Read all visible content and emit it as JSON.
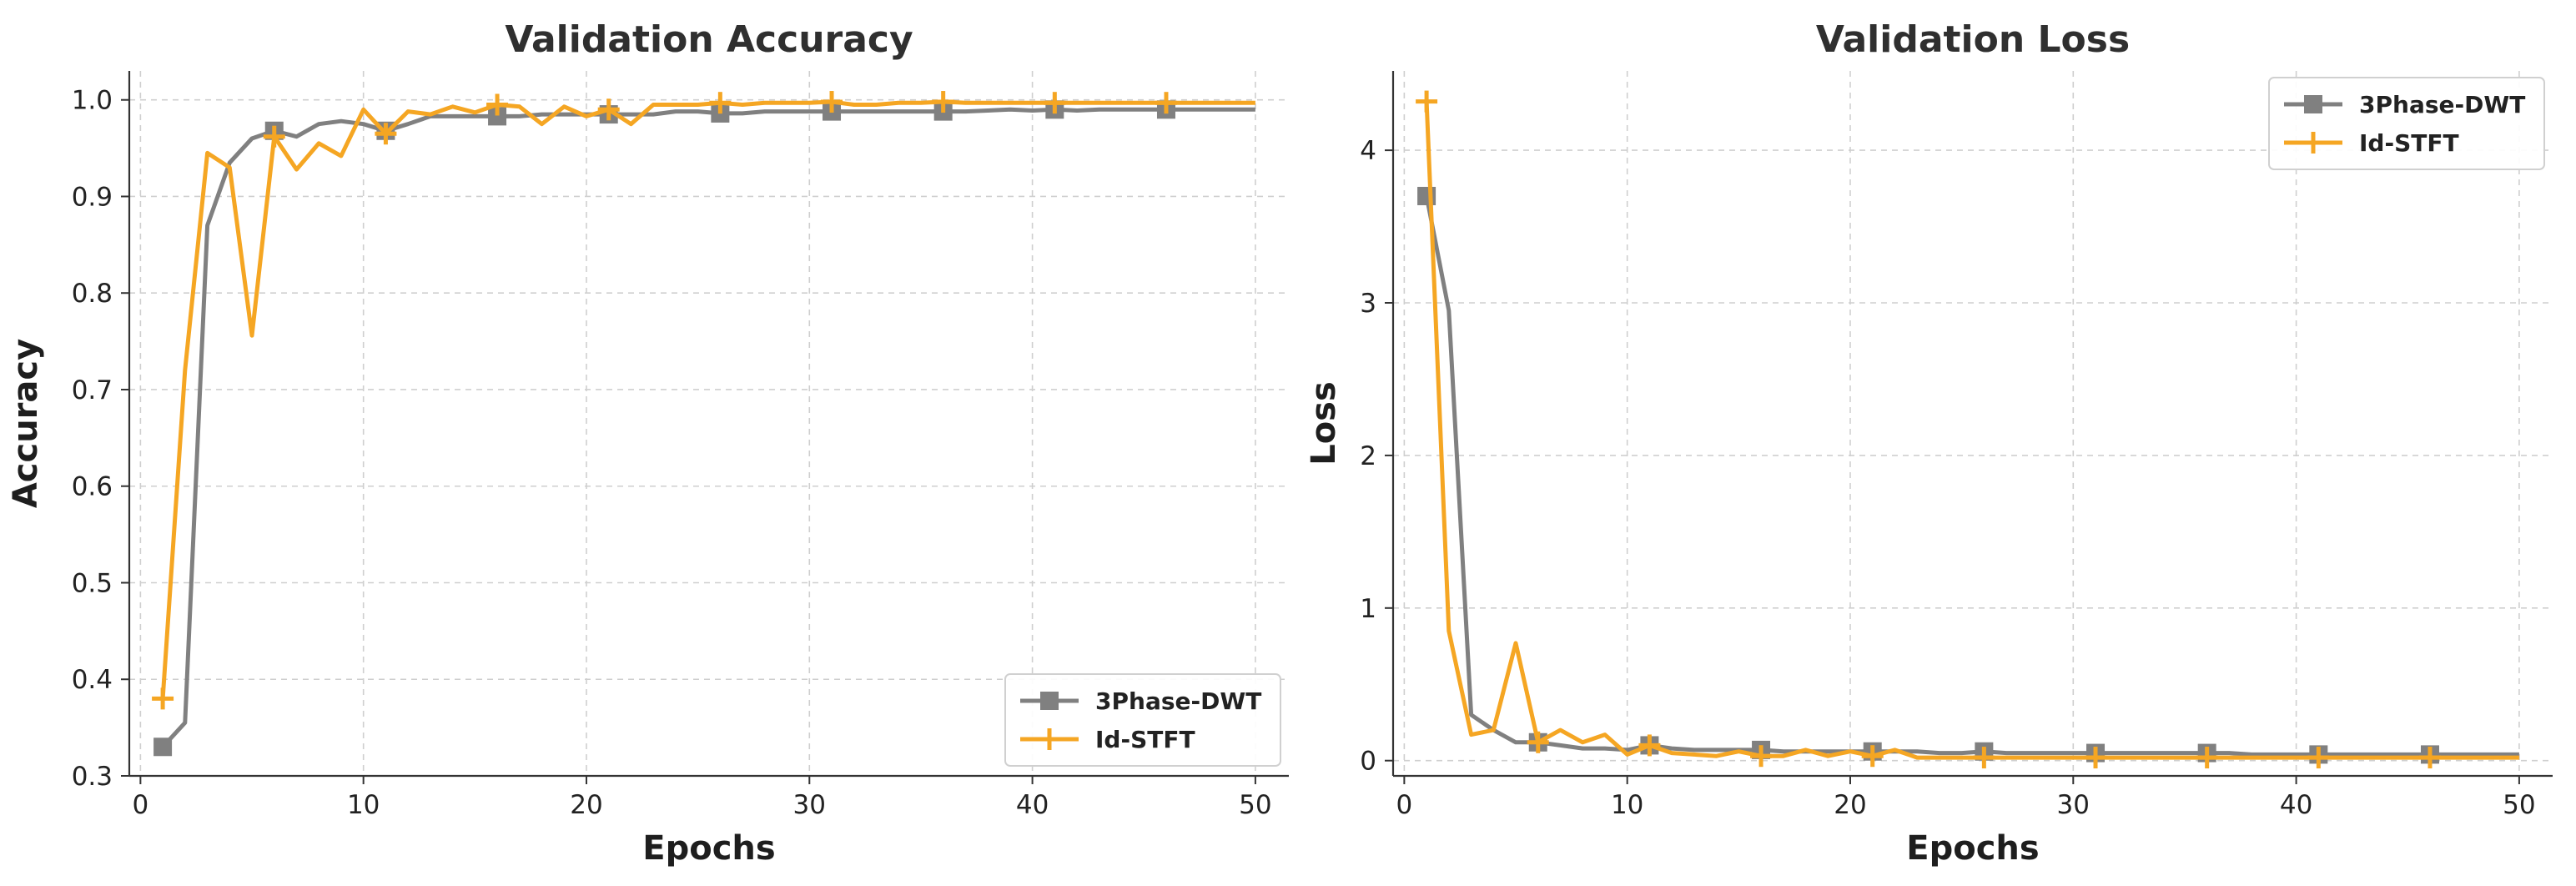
{
  "chart_data": [
    {
      "type": "line",
      "title": "Validation Accuracy",
      "xlabel": "Epochs",
      "ylabel": "Accuracy",
      "xlim": [
        -0.5,
        51.5
      ],
      "ylim": [
        0.3,
        1.03
      ],
      "xticks": [
        0,
        10,
        20,
        30,
        40,
        50
      ],
      "yticks": [
        0.3,
        0.4,
        0.5,
        0.6,
        0.7,
        0.8,
        0.9,
        1.0
      ],
      "ytick_labels": [
        "0.3",
        "0.4",
        "0.5",
        "0.6",
        "0.7",
        "0.8",
        "0.9",
        "1.0"
      ],
      "grid": true,
      "legend_position": "lower-right",
      "x": [
        1,
        2,
        3,
        4,
        5,
        6,
        7,
        8,
        9,
        10,
        11,
        12,
        13,
        14,
        15,
        16,
        17,
        18,
        19,
        20,
        21,
        22,
        23,
        24,
        25,
        26,
        27,
        28,
        29,
        30,
        31,
        32,
        33,
        34,
        35,
        36,
        37,
        38,
        39,
        40,
        41,
        42,
        43,
        44,
        45,
        46,
        47,
        48,
        49,
        50
      ],
      "series": [
        {
          "name": "3Phase-DWT",
          "color": "#808080",
          "marker": "square",
          "marker_every": 5,
          "values": [
            0.33,
            0.355,
            0.87,
            0.935,
            0.96,
            0.968,
            0.962,
            0.975,
            0.978,
            0.975,
            0.968,
            0.975,
            0.983,
            0.983,
            0.983,
            0.983,
            0.983,
            0.985,
            0.985,
            0.985,
            0.985,
            0.985,
            0.985,
            0.988,
            0.988,
            0.986,
            0.986,
            0.988,
            0.988,
            0.988,
            0.988,
            0.988,
            0.988,
            0.988,
            0.988,
            0.988,
            0.988,
            0.989,
            0.99,
            0.989,
            0.99,
            0.989,
            0.99,
            0.99,
            0.99,
            0.99,
            0.99,
            0.99,
            0.99,
            0.99
          ]
        },
        {
          "name": "Id-STFT",
          "color": "#f5a623",
          "marker": "plus",
          "marker_every": 5,
          "values": [
            0.38,
            0.72,
            0.945,
            0.93,
            0.756,
            0.962,
            0.928,
            0.955,
            0.942,
            0.99,
            0.965,
            0.988,
            0.985,
            0.993,
            0.987,
            0.995,
            0.993,
            0.975,
            0.993,
            0.983,
            0.99,
            0.975,
            0.995,
            0.995,
            0.995,
            0.997,
            0.995,
            0.997,
            0.997,
            0.997,
            0.998,
            0.995,
            0.995,
            0.997,
            0.997,
            0.998,
            0.997,
            0.997,
            0.997,
            0.997,
            0.997,
            0.997,
            0.997,
            0.997,
            0.997,
            0.997,
            0.997,
            0.997,
            0.997,
            0.997
          ]
        }
      ]
    },
    {
      "type": "line",
      "title": "Validation Loss",
      "xlabel": "Epochs",
      "ylabel": "Loss",
      "xlim": [
        -0.5,
        51.5
      ],
      "ylim": [
        -0.1,
        4.52
      ],
      "xticks": [
        0,
        10,
        20,
        30,
        40,
        50
      ],
      "yticks": [
        0,
        1,
        2,
        3,
        4
      ],
      "ytick_labels": [
        "0",
        "1",
        "2",
        "3",
        "4"
      ],
      "grid": true,
      "legend_position": "top-right",
      "x": [
        1,
        2,
        3,
        4,
        5,
        6,
        7,
        8,
        9,
        10,
        11,
        12,
        13,
        14,
        15,
        16,
        17,
        18,
        19,
        20,
        21,
        22,
        23,
        24,
        25,
        26,
        27,
        28,
        29,
        30,
        31,
        32,
        33,
        34,
        35,
        36,
        37,
        38,
        39,
        40,
        41,
        42,
        43,
        44,
        45,
        46,
        47,
        48,
        49,
        50
      ],
      "series": [
        {
          "name": "3Phase-DWT",
          "color": "#808080",
          "marker": "square",
          "marker_every": 5,
          "values": [
            3.7,
            2.95,
            0.3,
            0.2,
            0.12,
            0.12,
            0.1,
            0.08,
            0.08,
            0.07,
            0.1,
            0.08,
            0.07,
            0.07,
            0.07,
            0.07,
            0.06,
            0.06,
            0.06,
            0.06,
            0.06,
            0.06,
            0.06,
            0.05,
            0.05,
            0.06,
            0.05,
            0.05,
            0.05,
            0.05,
            0.05,
            0.05,
            0.05,
            0.05,
            0.05,
            0.05,
            0.05,
            0.04,
            0.04,
            0.04,
            0.04,
            0.04,
            0.04,
            0.04,
            0.04,
            0.04,
            0.04,
            0.04,
            0.04,
            0.04
          ]
        },
        {
          "name": "Id-STFT",
          "color": "#f5a623",
          "marker": "plus",
          "marker_every": 5,
          "values": [
            4.32,
            0.85,
            0.17,
            0.2,
            0.77,
            0.12,
            0.2,
            0.12,
            0.17,
            0.04,
            0.1,
            0.05,
            0.04,
            0.03,
            0.06,
            0.03,
            0.03,
            0.07,
            0.03,
            0.06,
            0.03,
            0.07,
            0.02,
            0.02,
            0.02,
            0.02,
            0.02,
            0.02,
            0.02,
            0.02,
            0.02,
            0.02,
            0.02,
            0.02,
            0.02,
            0.02,
            0.02,
            0.02,
            0.02,
            0.02,
            0.02,
            0.02,
            0.02,
            0.02,
            0.02,
            0.02,
            0.02,
            0.02,
            0.02,
            0.02
          ]
        }
      ]
    }
  ]
}
